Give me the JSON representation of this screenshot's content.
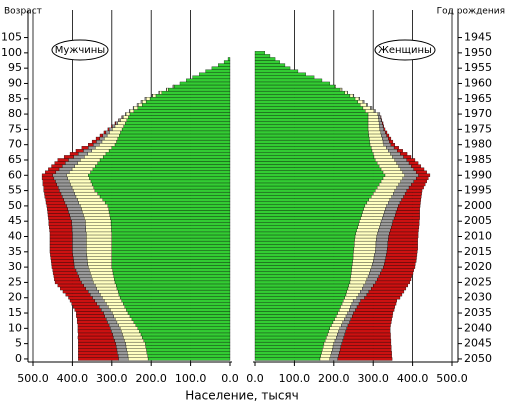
{
  "chart_data": {
    "type": "pyramid",
    "y_label": "Возраст",
    "y2_label": "Год рождения",
    "x_label": "Население, тысяч",
    "ages": [
      0,
      1,
      2,
      3,
      4,
      5,
      6,
      7,
      8,
      9,
      10,
      11,
      12,
      13,
      14,
      15,
      16,
      17,
      18,
      19,
      20,
      21,
      22,
      23,
      24,
      25,
      26,
      27,
      28,
      29,
      30,
      31,
      32,
      33,
      34,
      35,
      36,
      37,
      38,
      39,
      40,
      41,
      42,
      43,
      44,
      45,
      46,
      47,
      48,
      49,
      50,
      51,
      52,
      53,
      54,
      55,
      56,
      57,
      58,
      59,
      60,
      61,
      62,
      63,
      64,
      65,
      66,
      67,
      68,
      69,
      70,
      71,
      72,
      73,
      74,
      75,
      76,
      77,
      78,
      79,
      80,
      81,
      82,
      83,
      84,
      85,
      86,
      87,
      88,
      89,
      90,
      91,
      92,
      93,
      94,
      95,
      96,
      97,
      98,
      99,
      100
    ],
    "ylim": [
      -1,
      114
    ],
    "yticks": [
      0,
      5,
      10,
      15,
      20,
      25,
      30,
      35,
      40,
      45,
      50,
      55,
      60,
      65,
      70,
      75,
      80,
      85,
      90,
      95,
      100,
      105
    ],
    "y2lim": [
      2051,
      1936
    ],
    "y2ticks": [
      2050,
      2045,
      2040,
      2035,
      2030,
      2025,
      2020,
      2015,
      2010,
      2005,
      2000,
      1995,
      1990,
      1985,
      1980,
      1975,
      1970,
      1965,
      1960,
      1955,
      1950,
      1945
    ],
    "xlim": [
      0,
      500
    ],
    "xticks": [
      {
        "value": 0,
        "label": "0.0"
      },
      {
        "value": 100,
        "label": "100.0"
      },
      {
        "value": 200,
        "label": "200.0"
      },
      {
        "value": 300,
        "label": "300.0"
      },
      {
        "value": 400,
        "label": "400.0"
      },
      {
        "value": 500,
        "label": "500.0"
      }
    ],
    "grid": true,
    "male": {
      "label": "Мужчины",
      "series": [
        {
          "color": "#33cc33",
          "values": [
            208,
            209,
            211,
            212,
            214,
            215,
            219,
            223,
            226,
            230,
            234,
            239,
            244,
            249,
            254,
            259,
            263,
            267,
            271,
            275,
            279,
            282,
            284,
            287,
            289,
            292,
            294,
            295,
            297,
            298,
            300,
            300,
            300,
            300,
            300,
            300,
            300,
            300,
            300,
            300,
            300,
            300,
            301,
            301,
            302,
            302,
            304,
            305,
            307,
            308,
            310,
            317,
            323,
            330,
            336,
            343,
            346,
            350,
            353,
            357,
            360,
            354,
            348,
            342,
            336,
            330,
            322,
            315,
            307,
            300,
            292,
            288,
            285,
            281,
            278,
            274,
            270,
            266,
            262,
            258,
            254,
            244,
            234,
            223,
            213,
            203,
            188,
            173,
            157,
            142,
            127,
            111,
            95,
            78,
            62,
            46,
            30,
            15,
            5,
            0,
            0
          ]
        },
        {
          "color": "#ffffc0",
          "values": [
            50,
            50,
            50,
            50,
            50,
            50,
            49,
            48,
            47,
            46,
            45,
            44,
            43,
            42,
            41,
            40,
            41,
            42,
            43,
            44,
            45,
            47,
            49,
            51,
            53,
            55,
            56,
            57,
            58,
            59,
            60,
            61,
            62,
            63,
            64,
            65,
            65,
            65,
            65,
            65,
            65,
            65,
            65,
            65,
            65,
            65,
            66,
            67,
            68,
            69,
            70,
            67,
            64,
            61,
            58,
            55,
            55,
            55,
            55,
            55,
            55,
            54,
            53,
            52,
            51,
            50,
            48,
            46,
            44,
            42,
            40,
            37,
            34,
            31,
            28,
            25,
            22,
            19,
            16,
            13,
            10,
            10,
            10,
            10,
            10,
            10,
            8,
            6,
            4,
            2,
            0,
            0,
            0,
            0,
            0,
            0,
            0,
            0,
            0,
            0,
            0
          ]
        },
        {
          "color": "#999999",
          "values": [
            25,
            25,
            25,
            25,
            25,
            25,
            25,
            25,
            25,
            25,
            25,
            24,
            24,
            23,
            23,
            22,
            23,
            23,
            24,
            24,
            25,
            26,
            27,
            28,
            29,
            30,
            31,
            32,
            33,
            34,
            35,
            35,
            35,
            35,
            35,
            35,
            35,
            35,
            35,
            35,
            35,
            35,
            35,
            35,
            35,
            35,
            35,
            35,
            35,
            35,
            35,
            35,
            35,
            35,
            35,
            35,
            35,
            35,
            35,
            35,
            35,
            34,
            33,
            32,
            31,
            30,
            27,
            24,
            21,
            18,
            15,
            14,
            12,
            11,
            9,
            8,
            7,
            5,
            4,
            3,
            2,
            2,
            2,
            3,
            3,
            3,
            2,
            2,
            1,
            1,
            0,
            0,
            0,
            0,
            0,
            0,
            0,
            0,
            0,
            0,
            0
          ]
        },
        {
          "color": "#cc1111",
          "values": [
            102,
            101,
            99,
            98,
            96,
            95,
            92,
            90,
            87,
            85,
            82,
            79,
            77,
            74,
            72,
            69,
            67,
            66,
            64,
            63,
            61,
            62,
            64,
            65,
            66,
            67,
            65,
            63,
            61,
            59,
            57,
            57,
            57,
            57,
            57,
            57,
            57,
            57,
            57,
            57,
            57,
            57,
            57,
            58,
            58,
            58,
            56,
            55,
            53,
            52,
            50,
            48,
            46,
            44,
            42,
            40,
            37,
            35,
            32,
            30,
            27,
            27,
            27,
            27,
            27,
            27,
            24,
            21,
            19,
            16,
            13,
            11,
            9,
            7,
            5,
            3,
            2,
            2,
            1,
            1,
            0,
            0,
            0,
            0,
            0,
            0,
            0,
            0,
            0,
            0,
            0,
            0,
            0,
            0,
            0,
            0,
            0,
            0,
            0,
            0,
            0
          ]
        }
      ]
    },
    "female": {
      "label": "Женщины",
      "series": [
        {
          "color": "#33cc33",
          "values": [
            165,
            167,
            169,
            171,
            173,
            175,
            178,
            181,
            184,
            187,
            190,
            194,
            198,
            202,
            206,
            210,
            214,
            217,
            221,
            224,
            228,
            231,
            233,
            236,
            238,
            241,
            242,
            243,
            244,
            245,
            246,
            247,
            248,
            249,
            249,
            250,
            251,
            252,
            252,
            253,
            254,
            256,
            258,
            261,
            263,
            265,
            268,
            271,
            273,
            276,
            279,
            284,
            289,
            295,
            300,
            305,
            310,
            315,
            320,
            325,
            330,
            325,
            320,
            315,
            310,
            305,
            302,
            300,
            297,
            295,
            292,
            291,
            290,
            289,
            288,
            287,
            287,
            287,
            287,
            287,
            287,
            280,
            274,
            267,
            261,
            254,
            241,
            228,
            216,
            203,
            190,
            170,
            150,
            129,
            109,
            89,
            76,
            63,
            51,
            38,
            25
          ]
        },
        {
          "color": "#ffffc0",
          "values": [
            25,
            25,
            25,
            25,
            25,
            25,
            25,
            25,
            25,
            25,
            25,
            25,
            25,
            25,
            25,
            25,
            25,
            25,
            25,
            25,
            30,
            32,
            34,
            36,
            38,
            40,
            42,
            44,
            46,
            48,
            50,
            51,
            52,
            53,
            54,
            55,
            55,
            55,
            55,
            55,
            55,
            55,
            55,
            55,
            55,
            55,
            55,
            55,
            55,
            55,
            55,
            54,
            53,
            52,
            51,
            50,
            50,
            50,
            50,
            50,
            50,
            50,
            50,
            50,
            50,
            50,
            47,
            44,
            41,
            38,
            35,
            34,
            33,
            32,
            31,
            30,
            29,
            28,
            27,
            26,
            25,
            22,
            19,
            16,
            13,
            10,
            8,
            6,
            4,
            2,
            0,
            0,
            0,
            0,
            0,
            0,
            0,
            0,
            0,
            0,
            0
          ]
        },
        {
          "color": "#999999",
          "values": [
            20,
            20,
            20,
            20,
            20,
            20,
            20,
            19,
            19,
            18,
            18,
            17,
            17,
            16,
            16,
            15,
            16,
            17,
            18,
            19,
            20,
            21,
            22,
            23,
            24,
            25,
            26,
            27,
            28,
            29,
            30,
            30,
            30,
            30,
            30,
            30,
            30,
            30,
            30,
            30,
            30,
            30,
            30,
            30,
            30,
            30,
            30,
            30,
            30,
            30,
            30,
            30,
            30,
            30,
            30,
            30,
            31,
            32,
            33,
            34,
            35,
            34,
            33,
            32,
            31,
            30,
            28,
            25,
            23,
            20,
            18,
            16,
            15,
            13,
            12,
            10,
            9,
            8,
            7,
            6,
            5,
            4,
            4,
            3,
            3,
            2,
            2,
            1,
            1,
            0,
            0,
            0,
            0,
            0,
            0,
            0,
            0,
            0,
            0,
            0,
            0
          ]
        },
        {
          "color": "#cc1111",
          "values": [
            138,
            135,
            133,
            130,
            128,
            125,
            122,
            119,
            116,
            113,
            110,
            108,
            106,
            104,
            102,
            100,
            98,
            96,
            94,
            92,
            90,
            89,
            89,
            88,
            88,
            87,
            86,
            84,
            83,
            81,
            80,
            79,
            79,
            78,
            78,
            77,
            77,
            76,
            76,
            75,
            75,
            73,
            72,
            70,
            69,
            67,
            65,
            62,
            60,
            57,
            55,
            52,
            49,
            45,
            42,
            39,
            37,
            35,
            33,
            31,
            29,
            27,
            26,
            24,
            23,
            21,
            19,
            17,
            14,
            12,
            10,
            9,
            7,
            6,
            4,
            3,
            2,
            2,
            1,
            1,
            0,
            0,
            0,
            0,
            0,
            0,
            0,
            0,
            0,
            0,
            0,
            0,
            0,
            0,
            0,
            0,
            0,
            0,
            0,
            0,
            0
          ]
        }
      ]
    }
  }
}
